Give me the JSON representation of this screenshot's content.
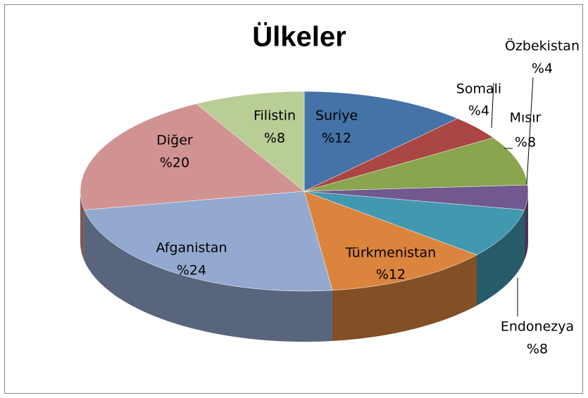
{
  "chart_data": {
    "type": "pie3d",
    "title": "Ülkeler",
    "categories": [
      "Suriye",
      "Somali",
      "Mısır",
      "Özbekistan",
      "Endonezya",
      "Türkmenistan",
      "Afganistan",
      "Diğer",
      "Filistin"
    ],
    "values": [
      12,
      4,
      8,
      4,
      8,
      12,
      24,
      20,
      8
    ],
    "value_labels": [
      "%12",
      "%4",
      "%8",
      "%4",
      "%8",
      "%12",
      "%24",
      "%20",
      "%8"
    ],
    "colors": [
      "#4572a7",
      "#aa4643",
      "#89a54e",
      "#71588f",
      "#4198af",
      "#db843d",
      "#93a9cf",
      "#d19392",
      "#b9cd96"
    ]
  }
}
